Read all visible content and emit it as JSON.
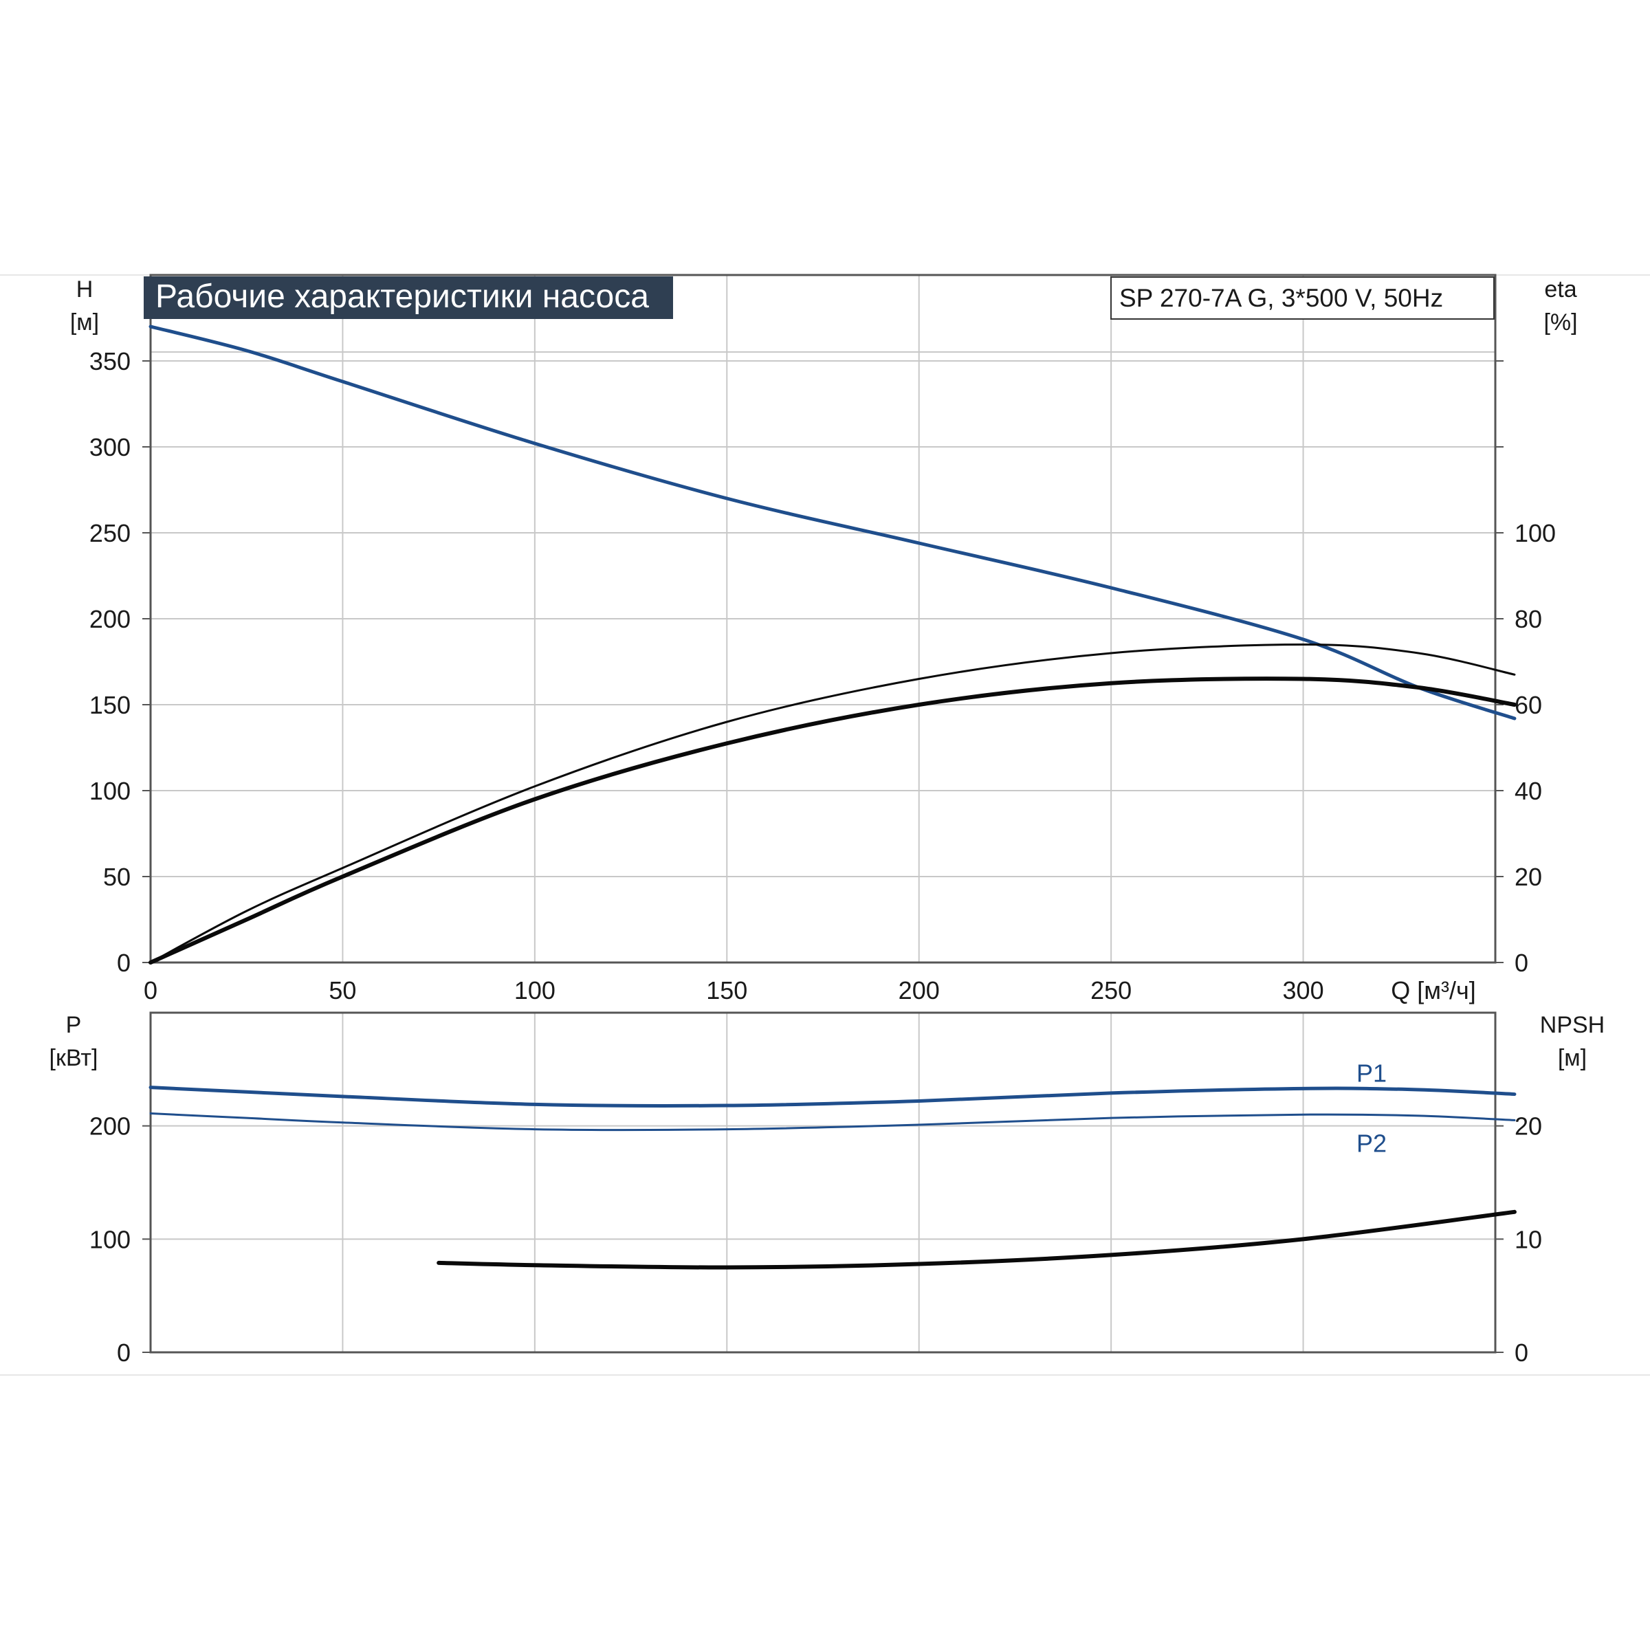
{
  "colors": {
    "blue": "#1f4e8c",
    "black": "#0a0a0a",
    "grid": "#c8c8c8",
    "frame": "#555555",
    "title_bg": "#2f3f52"
  },
  "chart_data": [
    {
      "id": "performance",
      "type": "line",
      "title": "Рабочие характеристики насоса",
      "model": "SP 270-7A G, 3*500 V, 50Hz",
      "xlabel": "Q [м³/ч]",
      "ylabel_left_name": "H",
      "ylabel_left_unit": "[м]",
      "ylabel_right_name": "eta",
      "ylabel_right_unit": "[%]",
      "xlim": [
        0,
        350
      ],
      "ylim_left": [
        0,
        400
      ],
      "ylim_right": [
        0,
        160
      ],
      "x_ticks": [
        "0",
        "50",
        "100",
        "150",
        "200",
        "250",
        "300"
      ],
      "y_left_ticks": [
        "0",
        "50",
        "100",
        "150",
        "200",
        "250",
        "300",
        "350"
      ],
      "y_right_ticks": [
        "0",
        "20",
        "40",
        "60",
        "80",
        "100"
      ],
      "grid": true,
      "series": [
        {
          "axis": "left",
          "color": "blue",
          "width": 5,
          "x": [
            0,
            25,
            50,
            100,
            150,
            200,
            250,
            300,
            330,
            355
          ],
          "y": [
            370,
            356,
            338,
            302,
            270,
            244,
            218,
            188,
            160,
            142
          ]
        },
        {
          "axis": "right",
          "color": "black",
          "width": 3,
          "x": [
            0,
            25,
            50,
            100,
            150,
            200,
            250,
            300,
            330,
            355
          ],
          "y": [
            0,
            12,
            22,
            41,
            56,
            66,
            72,
            74,
            72,
            67
          ]
        },
        {
          "axis": "right",
          "color": "black",
          "width": 6,
          "x": [
            0,
            25,
            50,
            100,
            150,
            200,
            250,
            300,
            330,
            355
          ],
          "y": [
            0,
            10,
            20,
            38,
            51,
            60,
            65,
            66,
            64,
            60
          ]
        }
      ]
    },
    {
      "id": "power",
      "type": "line",
      "ylabel_left_name": "P",
      "ylabel_left_unit": "[кВт]",
      "ylabel_right_name": "NPSH",
      "ylabel_right_unit": "[м]",
      "xlim": [
        0,
        350
      ],
      "ylim_left": [
        0,
        300
      ],
      "ylim_right": [
        0,
        30
      ],
      "y_left_ticks": [
        "0",
        "100",
        "200"
      ],
      "y_right_ticks": [
        "0",
        "10",
        "20"
      ],
      "grid": true,
      "series": [
        {
          "name": "P1",
          "axis": "left",
          "color": "blue",
          "width": 5,
          "x": [
            0,
            25,
            50,
            100,
            150,
            200,
            250,
            300,
            330,
            355
          ],
          "y": [
            234,
            230,
            226,
            219,
            218,
            222,
            229,
            233,
            232,
            228
          ]
        },
        {
          "name": "P2",
          "axis": "left",
          "color": "blue",
          "width": 3,
          "x": [
            0,
            25,
            50,
            100,
            150,
            200,
            250,
            300,
            330,
            355
          ],
          "y": [
            211,
            207,
            203,
            197,
            197,
            201,
            207,
            210,
            209,
            205
          ]
        },
        {
          "axis": "right",
          "color": "black",
          "width": 6,
          "x": [
            75,
            100,
            150,
            200,
            250,
            300,
            355
          ],
          "y": [
            7.9,
            7.7,
            7.5,
            7.8,
            8.6,
            10.0,
            12.4
          ]
        }
      ]
    }
  ]
}
